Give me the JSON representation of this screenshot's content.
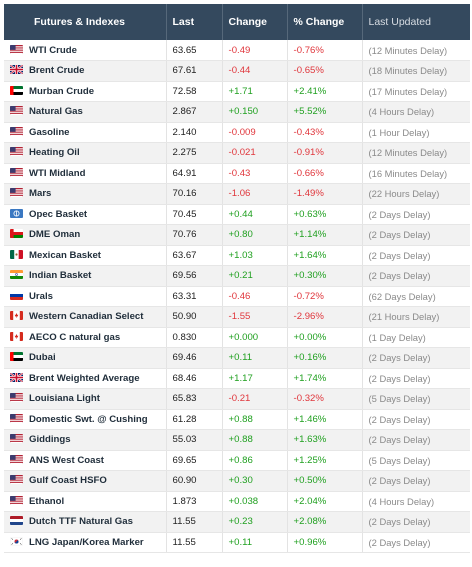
{
  "header": {
    "col_name": "Futures & Indexes",
    "col_last": "Last",
    "col_change": "Change",
    "col_pct": "% Change",
    "col_updated": "Last Updated"
  },
  "rows": [
    {
      "flag": "us",
      "name": "WTI Crude",
      "last": "63.65",
      "change": "-0.49",
      "pct": "-0.76%",
      "updated": "(12 Minutes Delay)",
      "dir": "neg"
    },
    {
      "flag": "uk",
      "name": "Brent Crude",
      "last": "67.61",
      "change": "-0.44",
      "pct": "-0.65%",
      "updated": "(18 Minutes Delay)",
      "dir": "neg"
    },
    {
      "flag": "ae",
      "name": "Murban Crude",
      "last": "72.58",
      "change": "+1.71",
      "pct": "+2.41%",
      "updated": "(17 Minutes Delay)",
      "dir": "pos"
    },
    {
      "flag": "us",
      "name": "Natural Gas",
      "last": "2.867",
      "change": "+0.150",
      "pct": "+5.52%",
      "updated": "(4 Hours Delay)",
      "dir": "pos"
    },
    {
      "flag": "us",
      "name": "Gasoline",
      "last": "2.140",
      "change": "-0.009",
      "pct": "-0.43%",
      "updated": "(1 Hour Delay)",
      "dir": "neg"
    },
    {
      "flag": "us",
      "name": "Heating Oil",
      "last": "2.275",
      "change": "-0.021",
      "pct": "-0.91%",
      "updated": "(12 Minutes Delay)",
      "dir": "neg"
    },
    {
      "flag": "us",
      "name": "WTI Midland",
      "last": "64.91",
      "change": "-0.43",
      "pct": "-0.66%",
      "updated": "(16 Minutes Delay)",
      "dir": "neg"
    },
    {
      "flag": "us",
      "name": "Mars",
      "last": "70.16",
      "change": "-1.06",
      "pct": "-1.49%",
      "updated": "(22 Hours Delay)",
      "dir": "neg"
    },
    {
      "flag": "opec",
      "name": "Opec Basket",
      "last": "70.45",
      "change": "+0.44",
      "pct": "+0.63%",
      "updated": "(2 Days Delay)",
      "dir": "pos"
    },
    {
      "flag": "om",
      "name": "DME Oman",
      "last": "70.76",
      "change": "+0.80",
      "pct": "+1.14%",
      "updated": "(2 Days Delay)",
      "dir": "pos"
    },
    {
      "flag": "mx",
      "name": "Mexican Basket",
      "last": "63.67",
      "change": "+1.03",
      "pct": "+1.64%",
      "updated": "(2 Days Delay)",
      "dir": "pos"
    },
    {
      "flag": "in",
      "name": "Indian Basket",
      "last": "69.56",
      "change": "+0.21",
      "pct": "+0.30%",
      "updated": "(2 Days Delay)",
      "dir": "pos"
    },
    {
      "flag": "ru",
      "name": "Urals",
      "last": "63.31",
      "change": "-0.46",
      "pct": "-0.72%",
      "updated": "(62 Days Delay)",
      "dir": "neg"
    },
    {
      "flag": "ca",
      "name": "Western Canadian Select",
      "last": "50.90",
      "change": "-1.55",
      "pct": "-2.96%",
      "updated": "(21 Hours Delay)",
      "dir": "neg"
    },
    {
      "flag": "ca",
      "name": "AECO C natural gas",
      "last": "0.830",
      "change": "+0.000",
      "pct": "+0.00%",
      "updated": "(1 Day Delay)",
      "dir": "pos"
    },
    {
      "flag": "ae",
      "name": "Dubai",
      "last": "69.46",
      "change": "+0.11",
      "pct": "+0.16%",
      "updated": "(2 Days Delay)",
      "dir": "pos"
    },
    {
      "flag": "uk",
      "name": "Brent Weighted Average",
      "last": "68.46",
      "change": "+1.17",
      "pct": "+1.74%",
      "updated": "(2 Days Delay)",
      "dir": "pos"
    },
    {
      "flag": "us",
      "name": "Louisiana Light",
      "last": "65.83",
      "change": "-0.21",
      "pct": "-0.32%",
      "updated": "(5 Days Delay)",
      "dir": "neg"
    },
    {
      "flag": "us",
      "name": "Domestic Swt. @ Cushing",
      "last": "61.28",
      "change": "+0.88",
      "pct": "+1.46%",
      "updated": "(2 Days Delay)",
      "dir": "pos"
    },
    {
      "flag": "us",
      "name": "Giddings",
      "last": "55.03",
      "change": "+0.88",
      "pct": "+1.63%",
      "updated": "(2 Days Delay)",
      "dir": "pos"
    },
    {
      "flag": "us",
      "name": "ANS West Coast",
      "last": "69.65",
      "change": "+0.86",
      "pct": "+1.25%",
      "updated": "(5 Days Delay)",
      "dir": "pos"
    },
    {
      "flag": "us",
      "name": "Gulf Coast HSFO",
      "last": "60.90",
      "change": "+0.30",
      "pct": "+0.50%",
      "updated": "(2 Days Delay)",
      "dir": "pos"
    },
    {
      "flag": "us",
      "name": "Ethanol",
      "last": "1.873",
      "change": "+0.038",
      "pct": "+2.04%",
      "updated": "(4 Hours Delay)",
      "dir": "pos"
    },
    {
      "flag": "nl",
      "name": "Dutch TTF Natural Gas",
      "last": "11.55",
      "change": "+0.23",
      "pct": "+2.08%",
      "updated": "(2 Days Delay)",
      "dir": "pos"
    },
    {
      "flag": "kr",
      "name": "LNG Japan/Korea Marker",
      "last": "11.55",
      "change": "+0.11",
      "pct": "+0.96%",
      "updated": "(2 Days Delay)",
      "dir": "pos"
    }
  ],
  "colors": {
    "header_bg": "#34495e",
    "positive": "#20a020",
    "negative": "#e0363c"
  }
}
